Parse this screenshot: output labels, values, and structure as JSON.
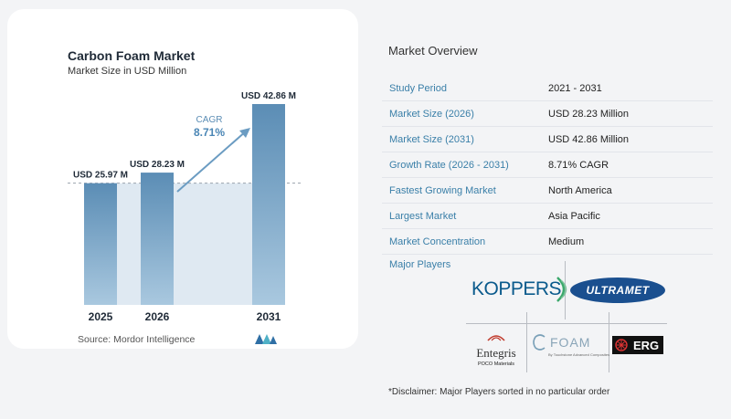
{
  "chart": {
    "title": "Carbon Foam Market",
    "subtitle": "Market Size in USD Million",
    "source": "Source:  Mordor Intelligence",
    "cagr_label": "CAGR",
    "cagr_value": "8.71%",
    "colors": {
      "bar": "#5b8db5",
      "bar_light": "#a9c8df",
      "highlight": "#dfe9f2",
      "arrow": "#6b9cc2"
    }
  },
  "chart_data": {
    "type": "bar",
    "categories": [
      "2025",
      "2026",
      "2031"
    ],
    "values": [
      25.97,
      28.23,
      42.86
    ],
    "value_labels": [
      "USD 25.97 M",
      "USD 28.23 M",
      "USD 42.86 M"
    ],
    "xlabel": "",
    "ylabel": "",
    "ylim": [
      0,
      45
    ]
  },
  "overview": {
    "title": "Market Overview",
    "rows": [
      {
        "label": "Study Period",
        "value": "2021 - 2031"
      },
      {
        "label": "Market Size (2026)",
        "value": "USD 28.23 Million"
      },
      {
        "label": "Market Size (2031)",
        "value": "USD 42.86 Million"
      },
      {
        "label": "Growth Rate (2026 - 2031)",
        "value": "8.71% CAGR"
      },
      {
        "label": "Fastest Growing Market",
        "value": "North America"
      },
      {
        "label": "Largest Market",
        "value": "Asia Pacific"
      },
      {
        "label": "Market Concentration",
        "value": "Medium"
      }
    ],
    "players_label": "Major Players",
    "players": {
      "koppers": "KOPPERS",
      "ultramet": "ULTRAMET",
      "entegris": "Entegris",
      "entegris_sub": "POCO Materials",
      "cfoam": "FOAM",
      "cfoam_sub": "By Touchstone Advanced Composites",
      "erg": "ERG"
    }
  },
  "disclaimer": "*Disclaimer: Major Players sorted in no particular order"
}
